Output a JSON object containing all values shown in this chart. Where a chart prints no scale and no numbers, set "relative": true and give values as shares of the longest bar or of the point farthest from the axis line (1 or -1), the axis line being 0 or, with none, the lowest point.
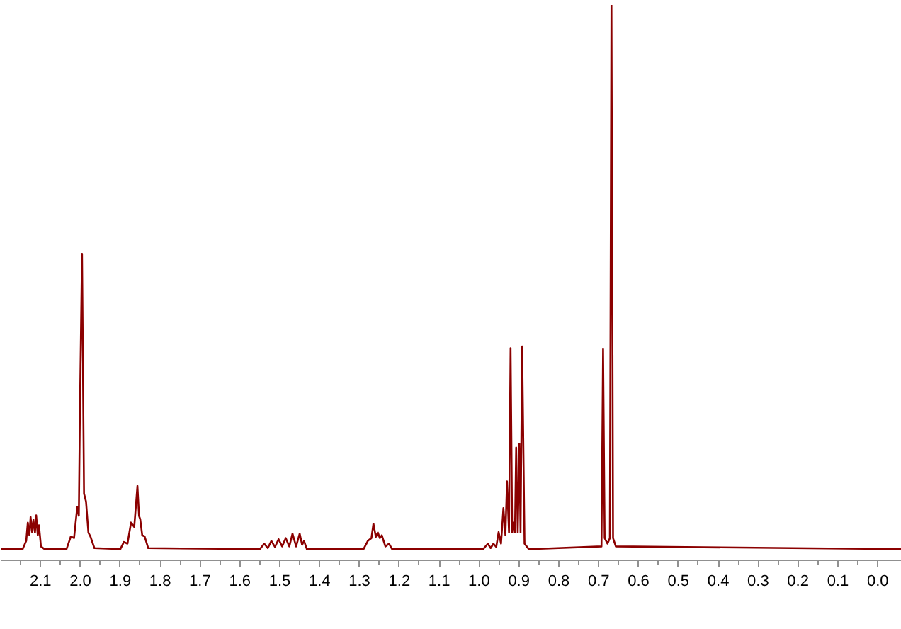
{
  "chart_data": {
    "type": "line",
    "relative": true,
    "grid": false,
    "tick_labels": "x",
    "marker": "none",
    "line_style": "solid",
    "xlim": [
      2.2,
      -0.06
    ],
    "xticks": [
      {
        "value": 0,
        "label": "0.0"
      },
      {
        "value": 0.05,
        "label": null
      },
      0.1,
      {
        "value": 0.15,
        "label": null
      },
      0.2,
      {
        "value": 0.25,
        "label": null
      },
      0.3,
      {
        "value": 0.35,
        "label": null
      },
      0.4,
      {
        "value": 0.45,
        "label": null
      },
      0.5,
      {
        "value": 0.55,
        "label": null
      },
      0.6,
      {
        "value": 0.65,
        "label": null
      },
      0.7,
      {
        "value": 0.75,
        "label": null
      },
      0.8,
      {
        "value": 0.85,
        "label": null
      },
      0.9,
      {
        "value": 0.95,
        "label": null
      },
      {
        "value": 1,
        "label": "1.0"
      },
      {
        "value": 1.05,
        "label": null
      },
      1.1,
      {
        "value": 1.15,
        "label": null
      },
      1.2,
      {
        "value": 1.25,
        "label": null
      },
      1.3,
      {
        "value": 1.35,
        "label": null
      },
      1.4,
      {
        "value": 1.45,
        "label": null
      },
      1.5,
      {
        "value": 1.55,
        "label": null
      },
      1.6,
      {
        "value": 1.65,
        "label": null
      },
      1.7,
      {
        "value": 1.75,
        "label": null
      },
      1.8,
      {
        "value": 1.85,
        "label": null
      },
      1.9,
      {
        "value": 1.95,
        "label": null
      },
      {
        "value": 2,
        "label": "2.0"
      },
      {
        "value": 2.05,
        "label": null
      },
      2.1,
      {
        "value": 2.15,
        "label": null
      }
    ],
    "series": [
      {
        "color": "#8b0000",
        "x": [
          2.2,
          2.145,
          2.136,
          2.132,
          2.128,
          2.125,
          2.121,
          2.118,
          2.114,
          2.111,
          2.107,
          2.104,
          2.099,
          2.09,
          2.035,
          2.024,
          2.016,
          2.008,
          2.004,
          2.001,
          1.996,
          1.991,
          1.986,
          1.98,
          1.975,
          1.965,
          1.9,
          1.891,
          1.882,
          1.873,
          1.865,
          1.857,
          1.853,
          1.85,
          1.845,
          1.839,
          1.83,
          1.55,
          1.539,
          1.53,
          1.521,
          1.512,
          1.503,
          1.494,
          1.485,
          1.476,
          1.468,
          1.459,
          1.45,
          1.444,
          1.439,
          1.432,
          1.29,
          1.279,
          1.27,
          1.265,
          1.259,
          1.254,
          1.249,
          1.244,
          1.235,
          1.226,
          1.218,
          0.99,
          0.978,
          0.971,
          0.964,
          0.957,
          0.951,
          0.945,
          0.939,
          0.934,
          0.93,
          0.925,
          0.921,
          0.917,
          0.914,
          0.91,
          0.907,
          0.903,
          0.899,
          0.896,
          0.892,
          0.886,
          0.875,
          0.693,
          0.689,
          0.685,
          0.678,
          0.672,
          0.668,
          0.664,
          0.657,
          -0.06
        ],
        "values": [
          0.02,
          0.02,
          0.035,
          0.068,
          0.045,
          0.078,
          0.05,
          0.073,
          0.05,
          0.081,
          0.045,
          0.063,
          0.025,
          0.02,
          0.02,
          0.043,
          0.04,
          0.096,
          0.08,
          0.286,
          0.552,
          0.12,
          0.106,
          0.05,
          0.043,
          0.022,
          0.02,
          0.033,
          0.03,
          0.068,
          0.06,
          0.134,
          0.08,
          0.074,
          0.045,
          0.043,
          0.022,
          0.02,
          0.03,
          0.022,
          0.035,
          0.024,
          0.038,
          0.025,
          0.04,
          0.025,
          0.048,
          0.025,
          0.048,
          0.028,
          0.035,
          0.02,
          0.02,
          0.035,
          0.04,
          0.066,
          0.042,
          0.05,
          0.04,
          0.045,
          0.025,
          0.03,
          0.02,
          0.02,
          0.03,
          0.022,
          0.03,
          0.024,
          0.051,
          0.03,
          0.094,
          0.045,
          0.142,
          0.05,
          0.382,
          0.05,
          0.068,
          0.05,
          0.203,
          0.05,
          0.21,
          0.05,
          0.385,
          0.03,
          0.02,
          0.025,
          0.38,
          0.04,
          0.03,
          0.04,
          1,
          0.04,
          0.025,
          0.02
        ]
      }
    ]
  }
}
